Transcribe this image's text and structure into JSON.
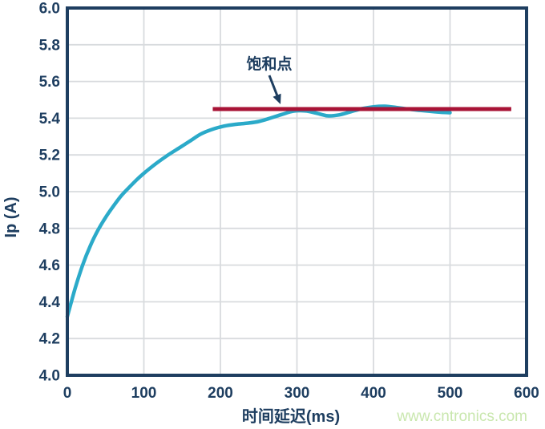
{
  "watermark": {
    "text": "www.cntronics.com"
  },
  "colors": {
    "axis_navy": "#1e3e60",
    "curve_cyan": "#2baac9",
    "saturation_red": "#a81336",
    "gridline_gray": "#d8dbde",
    "watermark_green": "#c9e7ae",
    "background": "#ffffff"
  },
  "chart_data": {
    "type": "line",
    "title": "",
    "xlabel": "时间延迟(ms)",
    "ylabel": "Ip (A)",
    "xlim": [
      0,
      600
    ],
    "ylim": [
      4.0,
      6.0
    ],
    "x_tick_labels": [
      "0",
      "100",
      "200",
      "300",
      "400",
      "500",
      "600"
    ],
    "x_tick_values": [
      0,
      100,
      200,
      300,
      400,
      500,
      600
    ],
    "y_tick_labels": [
      "4.0",
      "4.2",
      "4.4",
      "4.6",
      "4.8",
      "5.0",
      "5.2",
      "5.4",
      "5.6",
      "5.8",
      "6.0"
    ],
    "y_tick_values": [
      4.0,
      4.2,
      4.4,
      4.6,
      4.8,
      5.0,
      5.2,
      5.4,
      5.6,
      5.8,
      6.0
    ],
    "grid": true,
    "legend": "none",
    "series": [
      {
        "id": "ip-curve",
        "type": "line",
        "color": "#2baac9",
        "x": [
          0,
          10,
          20,
          30,
          40,
          50,
          60,
          70,
          80,
          90,
          100,
          115,
          130,
          145,
          160,
          175,
          190,
          205,
          220,
          235,
          250,
          265,
          280,
          295,
          310,
          325,
          340,
          355,
          370,
          385,
          400,
          415,
          430,
          445,
          460,
          475,
          490,
          500
        ],
        "y": [
          4.32,
          4.47,
          4.6,
          4.705,
          4.79,
          4.86,
          4.92,
          4.975,
          5.02,
          5.062,
          5.1,
          5.15,
          5.195,
          5.235,
          5.275,
          5.315,
          5.34,
          5.357,
          5.367,
          5.373,
          5.382,
          5.4,
          5.42,
          5.438,
          5.44,
          5.428,
          5.413,
          5.418,
          5.435,
          5.452,
          5.462,
          5.465,
          5.458,
          5.45,
          5.443,
          5.437,
          5.432,
          5.43
        ]
      },
      {
        "id": "saturation-level",
        "type": "hline",
        "color": "#a81336",
        "y": 5.45,
        "x_range": [
          190,
          580
        ]
      }
    ],
    "annotation": {
      "label": "饱和点",
      "text_at": {
        "x_ms": 264,
        "y_a": 5.7
      },
      "arrow_tip": {
        "x_ms": 279,
        "y_a": 5.47
      }
    }
  }
}
